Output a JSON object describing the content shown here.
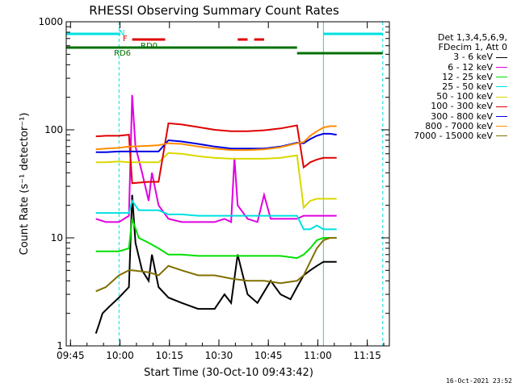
{
  "chart_data": {
    "type": "line",
    "title": "RHESSI Observing Summary Count Rates",
    "xlabel": "Start Time (30-Oct-10 09:43:42)",
    "ylabel": "Count Rate (s⁻¹ detector⁻¹)",
    "yscale": "log",
    "ylim": [
      1,
      1000
    ],
    "xlim_minutes": [
      0,
      98
    ],
    "x_ticks": [
      {
        "label": "09:45",
        "minute": 1.3
      },
      {
        "label": "10:00",
        "minute": 16.3
      },
      {
        "label": "10:15",
        "minute": 31.3
      },
      {
        "label": "10:30",
        "minute": 46.3
      },
      {
        "label": "10:45",
        "minute": 61.3
      },
      {
        "label": "11:00",
        "minute": 76.3
      },
      {
        "label": "11:15",
        "minute": 91.3
      }
    ],
    "y_ticks": [
      {
        "label": "1",
        "value": 1
      },
      {
        "label": "10",
        "value": 10
      },
      {
        "label": "100",
        "value": 100
      },
      {
        "label": "1000",
        "value": 1000
      }
    ],
    "legend_header": [
      "Det 1,3,4,5,6,9,",
      "FDecim 1, Att 0"
    ],
    "series": [
      {
        "name": "3 - 6 keV",
        "color": "#000000",
        "points": [
          [
            9,
            1.3
          ],
          [
            10,
            1.6
          ],
          [
            11,
            2
          ],
          [
            13,
            2.3
          ],
          [
            16,
            2.8
          ],
          [
            19,
            3.5
          ],
          [
            20,
            25
          ],
          [
            21,
            9
          ],
          [
            23,
            5
          ],
          [
            25,
            4
          ],
          [
            26,
            7
          ],
          [
            28,
            3.5
          ],
          [
            31,
            2.8
          ],
          [
            35,
            2.5
          ],
          [
            40,
            2.2
          ],
          [
            45,
            2.2
          ],
          [
            48,
            3
          ],
          [
            50,
            2.5
          ],
          [
            52,
            7
          ],
          [
            55,
            3
          ],
          [
            58,
            2.5
          ],
          [
            62,
            4
          ],
          [
            65,
            3
          ],
          [
            68,
            2.7
          ],
          [
            70,
            3.5
          ],
          [
            72,
            4.5
          ],
          [
            74,
            5
          ],
          [
            76,
            5.5
          ],
          [
            78,
            6
          ],
          [
            80,
            6
          ],
          [
            82,
            6
          ]
        ]
      },
      {
        "name": "6 - 12 keV",
        "color": "#e000e0",
        "points": [
          [
            9,
            15
          ],
          [
            12,
            14
          ],
          [
            16,
            14
          ],
          [
            19,
            16
          ],
          [
            20,
            210
          ],
          [
            21,
            70
          ],
          [
            23,
            40
          ],
          [
            25,
            22
          ],
          [
            26,
            40
          ],
          [
            28,
            20
          ],
          [
            31,
            15
          ],
          [
            35,
            14
          ],
          [
            40,
            14
          ],
          [
            45,
            14
          ],
          [
            48,
            15
          ],
          [
            50,
            14
          ],
          [
            51,
            55
          ],
          [
            52,
            20
          ],
          [
            55,
            15
          ],
          [
            58,
            14
          ],
          [
            60,
            25
          ],
          [
            62,
            15
          ],
          [
            65,
            15
          ],
          [
            70,
            15
          ],
          [
            72,
            16
          ],
          [
            74,
            16
          ],
          [
            78,
            16
          ],
          [
            82,
            16
          ]
        ]
      },
      {
        "name": "12 - 25 keV",
        "color": "#00e000",
        "points": [
          [
            9,
            7.5
          ],
          [
            12,
            7.5
          ],
          [
            16,
            7.5
          ],
          [
            19,
            8
          ],
          [
            20,
            15
          ],
          [
            22,
            10
          ],
          [
            25,
            9
          ],
          [
            28,
            8
          ],
          [
            31,
            7
          ],
          [
            35,
            7
          ],
          [
            40,
            6.8
          ],
          [
            45,
            6.8
          ],
          [
            50,
            6.8
          ],
          [
            55,
            6.8
          ],
          [
            60,
            6.8
          ],
          [
            65,
            6.8
          ],
          [
            70,
            6.5
          ],
          [
            72,
            7
          ],
          [
            74,
            8
          ],
          [
            76,
            9.5
          ],
          [
            78,
            10
          ],
          [
            80,
            10
          ],
          [
            82,
            10
          ]
        ]
      },
      {
        "name": "25 - 50 keV",
        "color": "#00e0e0",
        "points": [
          [
            9,
            17
          ],
          [
            12,
            17
          ],
          [
            16,
            17
          ],
          [
            19,
            17
          ],
          [
            20,
            22
          ],
          [
            22,
            18
          ],
          [
            25,
            18
          ],
          [
            28,
            18
          ],
          [
            31,
            16.5
          ],
          [
            35,
            16.5
          ],
          [
            40,
            16
          ],
          [
            45,
            16
          ],
          [
            50,
            16
          ],
          [
            55,
            16
          ],
          [
            60,
            16
          ],
          [
            65,
            16
          ],
          [
            70,
            16
          ],
          [
            72,
            12
          ],
          [
            74,
            12
          ],
          [
            76,
            13
          ],
          [
            78,
            12
          ],
          [
            82,
            12
          ]
        ]
      },
      {
        "name": "50 - 100 keV",
        "color": "#d8d800",
        "points": [
          [
            9,
            50
          ],
          [
            12,
            50
          ],
          [
            16,
            51
          ],
          [
            19,
            50
          ],
          [
            20,
            50
          ],
          [
            25,
            50
          ],
          [
            28,
            50
          ],
          [
            31,
            61
          ],
          [
            35,
            60
          ],
          [
            40,
            57
          ],
          [
            45,
            55
          ],
          [
            50,
            54
          ],
          [
            55,
            54
          ],
          [
            60,
            54
          ],
          [
            65,
            55
          ],
          [
            70,
            58
          ],
          [
            72,
            19
          ],
          [
            74,
            22
          ],
          [
            76,
            23
          ],
          [
            78,
            23
          ],
          [
            82,
            23
          ]
        ]
      },
      {
        "name": "100 - 300 keV",
        "color": "#e00000",
        "points": [
          [
            9,
            87
          ],
          [
            12,
            88
          ],
          [
            16,
            88
          ],
          [
            19,
            90
          ],
          [
            20,
            32
          ],
          [
            25,
            33
          ],
          [
            28,
            33
          ],
          [
            31,
            115
          ],
          [
            35,
            112
          ],
          [
            40,
            106
          ],
          [
            45,
            100
          ],
          [
            50,
            97
          ],
          [
            55,
            97
          ],
          [
            60,
            99
          ],
          [
            65,
            103
          ],
          [
            70,
            110
          ],
          [
            72,
            45
          ],
          [
            74,
            50
          ],
          [
            76,
            53
          ],
          [
            78,
            55
          ],
          [
            82,
            55
          ]
        ]
      },
      {
        "name": "300 - 800 keV",
        "color": "#0000e0",
        "points": [
          [
            9,
            62
          ],
          [
            12,
            62
          ],
          [
            16,
            63
          ],
          [
            19,
            63
          ],
          [
            20,
            63
          ],
          [
            25,
            63
          ],
          [
            28,
            63
          ],
          [
            31,
            80
          ],
          [
            35,
            78
          ],
          [
            40,
            74
          ],
          [
            45,
            70
          ],
          [
            50,
            67
          ],
          [
            55,
            67
          ],
          [
            60,
            67
          ],
          [
            65,
            70
          ],
          [
            70,
            76
          ],
          [
            72,
            75
          ],
          [
            74,
            82
          ],
          [
            76,
            88
          ],
          [
            78,
            92
          ],
          [
            80,
            92
          ],
          [
            82,
            90
          ]
        ]
      },
      {
        "name": "800 - 7000 keV",
        "color": "#ff8c00",
        "points": [
          [
            9,
            66
          ],
          [
            12,
            67
          ],
          [
            16,
            68
          ],
          [
            19,
            70
          ],
          [
            20,
            70
          ],
          [
            25,
            71
          ],
          [
            28,
            72
          ],
          [
            31,
            75
          ],
          [
            35,
            74
          ],
          [
            40,
            70
          ],
          [
            45,
            67
          ],
          [
            50,
            65
          ],
          [
            55,
            65
          ],
          [
            60,
            66
          ],
          [
            65,
            69
          ],
          [
            70,
            75
          ],
          [
            72,
            77
          ],
          [
            74,
            88
          ],
          [
            76,
            97
          ],
          [
            78,
            105
          ],
          [
            80,
            108
          ],
          [
            82,
            108
          ]
        ]
      },
      {
        "name": "7000 - 15000 keV",
        "color": "#807000",
        "points": [
          [
            9,
            3.2
          ],
          [
            12,
            3.5
          ],
          [
            16,
            4.5
          ],
          [
            19,
            5
          ],
          [
            20,
            5
          ],
          [
            25,
            4.8
          ],
          [
            28,
            4.5
          ],
          [
            31,
            5.5
          ],
          [
            35,
            5
          ],
          [
            40,
            4.5
          ],
          [
            45,
            4.5
          ],
          [
            50,
            4.2
          ],
          [
            55,
            4
          ],
          [
            60,
            4
          ],
          [
            65,
            3.8
          ],
          [
            70,
            4
          ],
          [
            72,
            4.5
          ],
          [
            74,
            6
          ],
          [
            76,
            8
          ],
          [
            78,
            9.5
          ],
          [
            80,
            10
          ],
          [
            82,
            10
          ]
        ]
      }
    ],
    "observing_bars": [
      {
        "label": "N",
        "color": "#00e0e0",
        "level": 1,
        "spans": [
          [
            0,
            16
          ],
          [
            78,
            96
          ]
        ]
      },
      {
        "label": "F",
        "color": "#e00000",
        "level": 2,
        "spans": [
          [
            20,
            30
          ],
          [
            52,
            55
          ],
          [
            57,
            60
          ]
        ]
      },
      {
        "label": "RD0",
        "color": "#007000",
        "level": 3,
        "spans": [
          [
            0,
            70
          ],
          [
            70,
            96
          ]
        ]
      }
    ],
    "observing_labels": {
      "n": "N",
      "f": "F",
      "rd0": "RD0",
      "rd6": "RD6"
    },
    "vertical_markers": [
      {
        "color": "#00e0e0",
        "minute": 0,
        "style": "solid"
      },
      {
        "color": "#00e0e0",
        "minute": 16,
        "style": "dashed"
      },
      {
        "color": "#00e0e0",
        "minute": 78,
        "style": "solid"
      },
      {
        "color": "#00e0e0",
        "minute": 96,
        "style": "dashed"
      }
    ],
    "grid": false,
    "legend_placement": "right"
  },
  "footer_timestamp": "16-Oct-2021 23:52"
}
